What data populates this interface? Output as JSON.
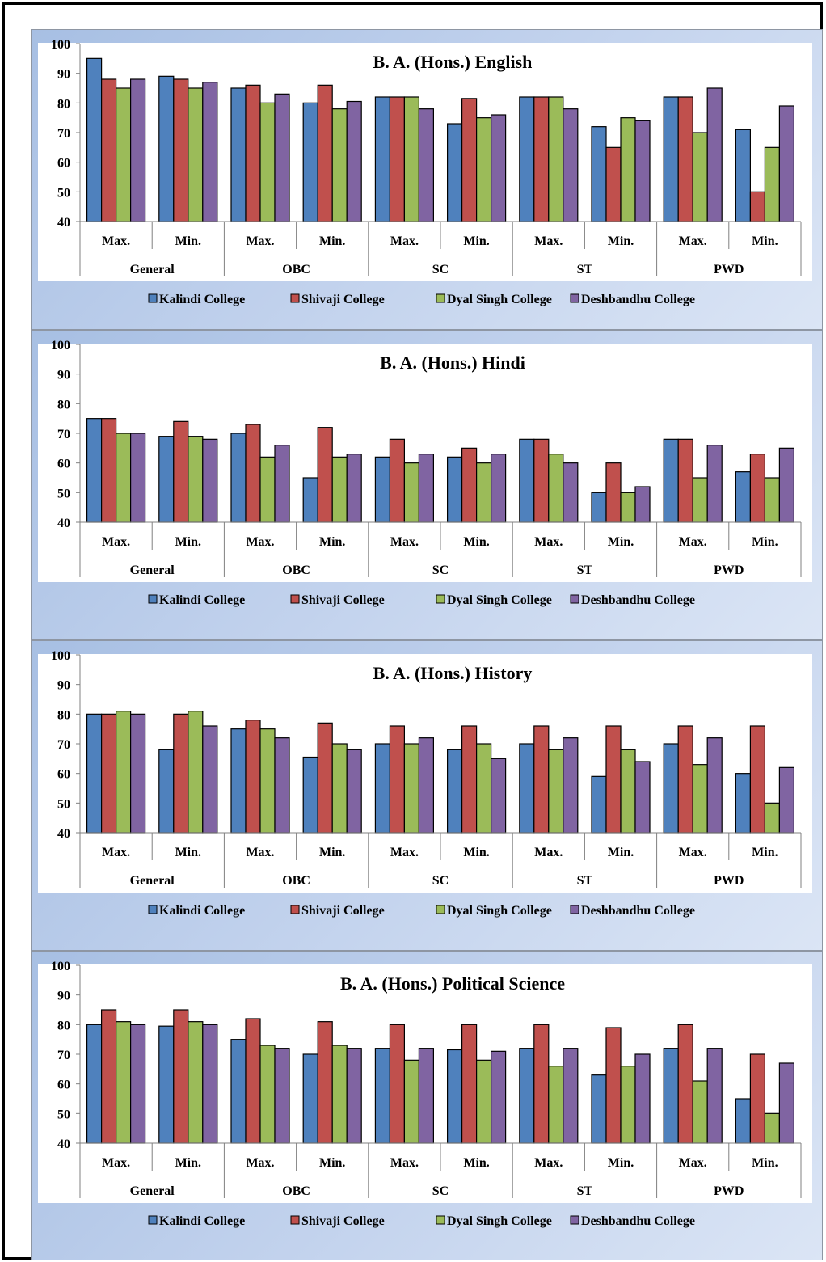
{
  "legend": [
    "Kalindi College",
    "Shivaji College",
    "Dyal Singh College",
    "Deshbandhu College"
  ],
  "colors": [
    "#4f81bd",
    "#c0504d",
    "#9bbb59",
    "#8064a2"
  ],
  "chart_data": [
    {
      "type": "bar",
      "title": "B. A. (Hons.) English",
      "groups": [
        "General",
        "OBC",
        "SC",
        "ST",
        "PWD"
      ],
      "categories": [
        "Max.",
        "Min.",
        "Max.",
        "Min.",
        "Max.",
        "Min.",
        "Max.",
        "Min.",
        "Max.",
        "Min."
      ],
      "ylim": [
        40,
        100
      ],
      "yticks": [
        40,
        50,
        60,
        70,
        80,
        90,
        100
      ],
      "legend_position": "bottom",
      "series": [
        {
          "name": "Kalindi College",
          "values": [
            95,
            89,
            85,
            80,
            82,
            73,
            82,
            72,
            82,
            71
          ]
        },
        {
          "name": "Shivaji College",
          "values": [
            88,
            88,
            86,
            86,
            82,
            81.5,
            82,
            65,
            82,
            50
          ]
        },
        {
          "name": "Dyal Singh College",
          "values": [
            85,
            85,
            80,
            78,
            82,
            75,
            82,
            75,
            70,
            65
          ]
        },
        {
          "name": "Deshbandhu College",
          "values": [
            88,
            87,
            83,
            80.5,
            78,
            76,
            78,
            74,
            85,
            79
          ]
        }
      ]
    },
    {
      "type": "bar",
      "title": "B. A. (Hons.) Hindi",
      "groups": [
        "General",
        "OBC",
        "SC",
        "ST",
        "PWD"
      ],
      "categories": [
        "Max.",
        "Min.",
        "Max.",
        "Min.",
        "Max.",
        "Min.",
        "Max.",
        "Min.",
        "Max.",
        "Min."
      ],
      "ylim": [
        40,
        100
      ],
      "yticks": [
        40,
        50,
        60,
        70,
        80,
        90,
        100
      ],
      "legend_position": "bottom",
      "series": [
        {
          "name": "Kalindi College",
          "values": [
            75,
            69,
            70,
            55,
            62,
            62,
            68,
            50,
            68,
            57
          ]
        },
        {
          "name": "Shivaji College",
          "values": [
            75,
            74,
            73,
            72,
            68,
            65,
            68,
            60,
            68,
            63
          ]
        },
        {
          "name": "Dyal Singh College",
          "values": [
            70,
            69,
            62,
            62,
            60,
            60,
            63,
            50,
            55,
            55
          ]
        },
        {
          "name": "Deshbandhu College",
          "values": [
            70,
            68,
            66,
            63,
            63,
            63,
            60,
            52,
            66,
            65
          ]
        }
      ]
    },
    {
      "type": "bar",
      "title": "B. A. (Hons.) History",
      "groups": [
        "General",
        "OBC",
        "SC",
        "ST",
        "PWD"
      ],
      "categories": [
        "Max.",
        "Min.",
        "Max.",
        "Min.",
        "Max.",
        "Min.",
        "Max.",
        "Min.",
        "Max.",
        "Min."
      ],
      "ylim": [
        40,
        100
      ],
      "yticks": [
        40,
        50,
        60,
        70,
        80,
        90,
        100
      ],
      "legend_position": "bottom",
      "series": [
        {
          "name": "Kalindi College",
          "values": [
            80,
            68,
            75,
            65.5,
            70,
            68,
            70,
            59,
            70,
            60
          ]
        },
        {
          "name": "Shivaji College",
          "values": [
            80,
            80,
            78,
            77,
            76,
            76,
            76,
            76,
            76,
            76
          ]
        },
        {
          "name": "Dyal Singh College",
          "values": [
            81,
            81,
            75,
            70,
            70,
            70,
            68,
            68,
            63,
            50
          ]
        },
        {
          "name": "Deshbandhu College",
          "values": [
            80,
            76,
            72,
            68,
            72,
            65,
            72,
            64,
            72,
            62
          ]
        }
      ]
    },
    {
      "type": "bar",
      "title": "B. A. (Hons.) Political Science",
      "groups": [
        "General",
        "OBC",
        "SC",
        "ST",
        "PWD"
      ],
      "categories": [
        "Max.",
        "Min.",
        "Max.",
        "Min.",
        "Max.",
        "Min.",
        "Max.",
        "Min.",
        "Max.",
        "Min."
      ],
      "ylim": [
        40,
        100
      ],
      "yticks": [
        40,
        50,
        60,
        70,
        80,
        90,
        100
      ],
      "legend_position": "bottom",
      "series": [
        {
          "name": "Kalindi College",
          "values": [
            80,
            79.5,
            75,
            70,
            72,
            71.5,
            72,
            63,
            72,
            55
          ]
        },
        {
          "name": "Shivaji College",
          "values": [
            85,
            85,
            82,
            81,
            80,
            80,
            80,
            79,
            80,
            70
          ]
        },
        {
          "name": "Dyal Singh College",
          "values": [
            81,
            81,
            73,
            73,
            68,
            68,
            66,
            66,
            61,
            50
          ]
        },
        {
          "name": "Deshbandhu College",
          "values": [
            80,
            80,
            72,
            72,
            72,
            71,
            72,
            70,
            72,
            67
          ]
        }
      ]
    }
  ]
}
